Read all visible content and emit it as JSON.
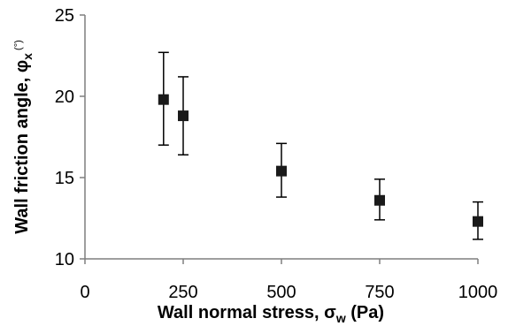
{
  "chart_data": {
    "type": "scatter",
    "title": "",
    "xlabel": {
      "main": "Wall normal stress, σ",
      "sub": "w",
      "tail": " (Pa)"
    },
    "ylabel": {
      "main": "Wall friction angle, φ",
      "sub": "x",
      "sup": " (°)"
    },
    "xlim": [
      0,
      1000
    ],
    "ylim": [
      10,
      25
    ],
    "x_ticks": [
      0,
      250,
      500,
      750,
      1000
    ],
    "y_ticks": [
      10,
      15,
      20,
      25
    ],
    "grid": false,
    "marker": "square",
    "marker_color": "#1a1a1a",
    "points": [
      {
        "x": 200,
        "y": 19.8,
        "err_low": 17.0,
        "err_high": 22.7
      },
      {
        "x": 250,
        "y": 18.8,
        "err_low": 16.4,
        "err_high": 21.2
      },
      {
        "x": 500,
        "y": 15.4,
        "err_low": 13.8,
        "err_high": 17.1
      },
      {
        "x": 750,
        "y": 13.6,
        "err_low": 12.4,
        "err_high": 14.9
      },
      {
        "x": 1000,
        "y": 12.3,
        "err_low": 11.2,
        "err_high": 13.5
      }
    ]
  }
}
